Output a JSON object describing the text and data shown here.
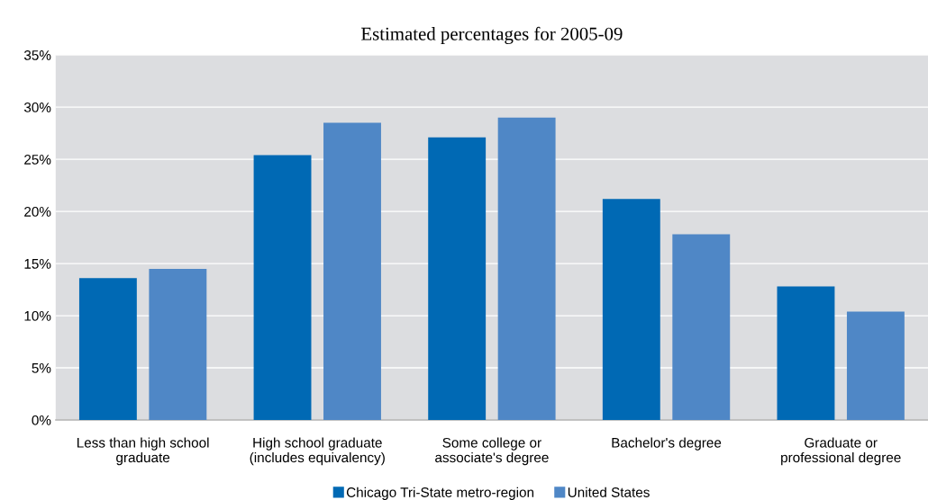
{
  "chart_data": {
    "type": "bar",
    "title": "Estimated percentages for 2005-09",
    "categories": [
      "Less than high school\ngraduate",
      "High school graduate\n(includes equivalency)",
      "Some college or\nassociate's degree",
      "Bachelor's degree",
      "Graduate or\nprofessional degree"
    ],
    "series": [
      {
        "name": "Chicago Tri-State metro-region",
        "color": "#0069b4",
        "values": [
          13.6,
          25.4,
          27.1,
          21.2,
          12.8
        ]
      },
      {
        "name": "United States",
        "color": "#4f87c6",
        "values": [
          14.5,
          28.5,
          29.0,
          17.8,
          10.4
        ]
      }
    ],
    "ylim": [
      0,
      35
    ],
    "yticks": [
      {
        "value": 0,
        "label": "0%"
      },
      {
        "value": 5,
        "label": "5%"
      },
      {
        "value": 10,
        "label": "10%"
      },
      {
        "value": 15,
        "label": "15%"
      },
      {
        "value": 20,
        "label": "20%"
      },
      {
        "value": 25,
        "label": "25%"
      },
      {
        "value": 30,
        "label": "30%"
      },
      {
        "value": 35,
        "label": "35%"
      }
    ],
    "grid": "y",
    "legend": "bottom"
  }
}
